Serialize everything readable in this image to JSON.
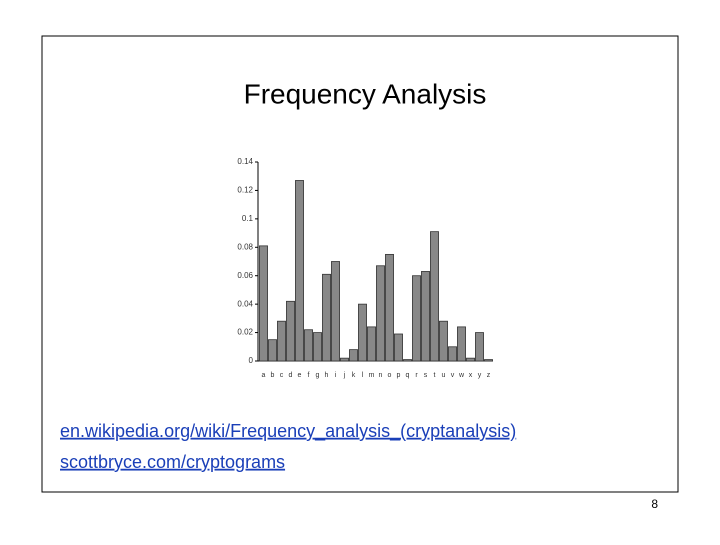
{
  "chart_data": {
    "type": "bar",
    "title": "Frequency Analysis",
    "categories": [
      "a",
      "b",
      "c",
      "d",
      "e",
      "f",
      "g",
      "h",
      "i",
      "j",
      "k",
      "l",
      "m",
      "n",
      "o",
      "p",
      "q",
      "r",
      "s",
      "t",
      "u",
      "v",
      "w",
      "x",
      "y",
      "z"
    ],
    "values": [
      0.081,
      0.015,
      0.028,
      0.042,
      0.127,
      0.022,
      0.02,
      0.061,
      0.07,
      0.002,
      0.008,
      0.04,
      0.024,
      0.067,
      0.075,
      0.019,
      0.001,
      0.06,
      0.063,
      0.091,
      0.028,
      0.01,
      0.024,
      0.002,
      0.02,
      0.001
    ],
    "color": "#888888",
    "ylim": [
      0,
      0.14
    ],
    "yticks": [
      0,
      0.02,
      0.04,
      0.06,
      0.08,
      0.1,
      0.12,
      0.14
    ],
    "grid": false
  },
  "links": [
    "en.wikipedia.org/wiki/Frequency_analysis_(cryptanalysis)",
    "scottbryce.com/cryptograms"
  ],
  "page_number": "8"
}
